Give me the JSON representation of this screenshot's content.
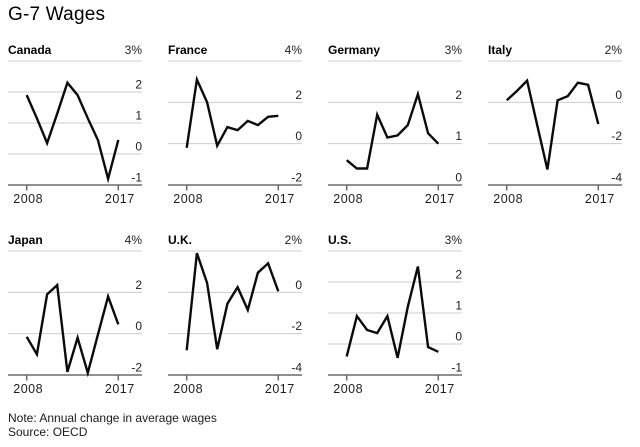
{
  "page": {
    "title": "G-7 Wages",
    "note": "Note: Annual change in average wages",
    "source": "Source: OECD"
  },
  "chart_data": {
    "type": "line",
    "layout": "small-multiples-2-rows",
    "title": "G-7 Wages",
    "note": "Note: Annual change in average wages",
    "source": "Source: OECD",
    "grid": "horizontal-only",
    "legend": "none",
    "colors": {
      "line": "#0b0b0b",
      "gridline": "#cdcdcd",
      "axis": "#6b6b6b",
      "text": "#1a1a1a"
    },
    "x": [
      2008,
      2009,
      2010,
      2011,
      2012,
      2013,
      2014,
      2015,
      2016,
      2017
    ],
    "x_axis_labels": [
      "2008",
      "2017"
    ],
    "panels": [
      {
        "title": "Canada",
        "max_label": "3%",
        "ymax": 3,
        "ymin": -1,
        "yticks": [
          {
            "value": 2,
            "label": "2"
          },
          {
            "value": 1,
            "label": "1"
          },
          {
            "value": 0,
            "label": "0"
          },
          {
            "value": -1,
            "label": "-1"
          }
        ],
        "values": [
          1.9,
          1.15,
          0.35,
          1.3,
          2.3,
          1.9,
          1.15,
          0.45,
          -0.8,
          0.45
        ]
      },
      {
        "title": "France",
        "max_label": "4%",
        "ymax": 4,
        "ymin": -2,
        "yticks": [
          {
            "value": 2,
            "label": "2"
          },
          {
            "value": 0,
            "label": "0"
          },
          {
            "value": -2,
            "label": "-2"
          }
        ],
        "values": [
          -0.2,
          3.1,
          2.0,
          -0.1,
          0.8,
          0.65,
          1.1,
          0.9,
          1.3,
          1.35
        ]
      },
      {
        "title": "Germany",
        "max_label": "3%",
        "ymax": 3,
        "ymin": 0,
        "yticks": [
          {
            "value": 2,
            "label": "2"
          },
          {
            "value": 1,
            "label": "1"
          },
          {
            "value": 0,
            "label": "0"
          }
        ],
        "values": [
          0.6,
          0.4,
          0.4,
          1.7,
          1.15,
          1.2,
          1.45,
          2.2,
          1.25,
          1.0
        ]
      },
      {
        "title": "Italy",
        "max_label": "2%",
        "ymax": 2,
        "ymin": -4,
        "yticks": [
          {
            "value": 0,
            "label": "0"
          },
          {
            "value": -2,
            "label": "-2"
          },
          {
            "value": -4,
            "label": "-4"
          }
        ],
        "values": [
          0.1,
          0.55,
          1.05,
          -1.1,
          -3.25,
          0.1,
          0.3,
          0.95,
          0.85,
          -1.05
        ]
      },
      {
        "title": "Japan",
        "max_label": "4%",
        "ymax": 4,
        "ymin": -2,
        "yticks": [
          {
            "value": 2,
            "label": "2"
          },
          {
            "value": 0,
            "label": "0"
          },
          {
            "value": -2,
            "label": "-2"
          }
        ],
        "values": [
          -0.15,
          -1.0,
          1.9,
          2.35,
          -1.85,
          -0.2,
          -1.9,
          -0.05,
          1.8,
          0.45
        ]
      },
      {
        "title": "U.K.",
        "max_label": "2%",
        "ymax": 2,
        "ymin": -4,
        "yticks": [
          {
            "value": 0,
            "label": "0"
          },
          {
            "value": -2,
            "label": "-2"
          },
          {
            "value": -4,
            "label": "-4"
          }
        ],
        "values": [
          -2.8,
          1.9,
          0.45,
          -2.75,
          -0.55,
          0.25,
          -0.85,
          0.95,
          1.4,
          0.05
        ]
      },
      {
        "title": "U.S.",
        "max_label": "3%",
        "ymax": 3,
        "ymin": -1,
        "yticks": [
          {
            "value": 2,
            "label": "2"
          },
          {
            "value": 1,
            "label": "1"
          },
          {
            "value": 0,
            "label": "0"
          },
          {
            "value": -1,
            "label": "-1"
          }
        ],
        "values": [
          -0.4,
          0.9,
          0.45,
          0.35,
          0.9,
          -0.45,
          1.2,
          2.5,
          -0.1,
          -0.25
        ]
      }
    ]
  }
}
